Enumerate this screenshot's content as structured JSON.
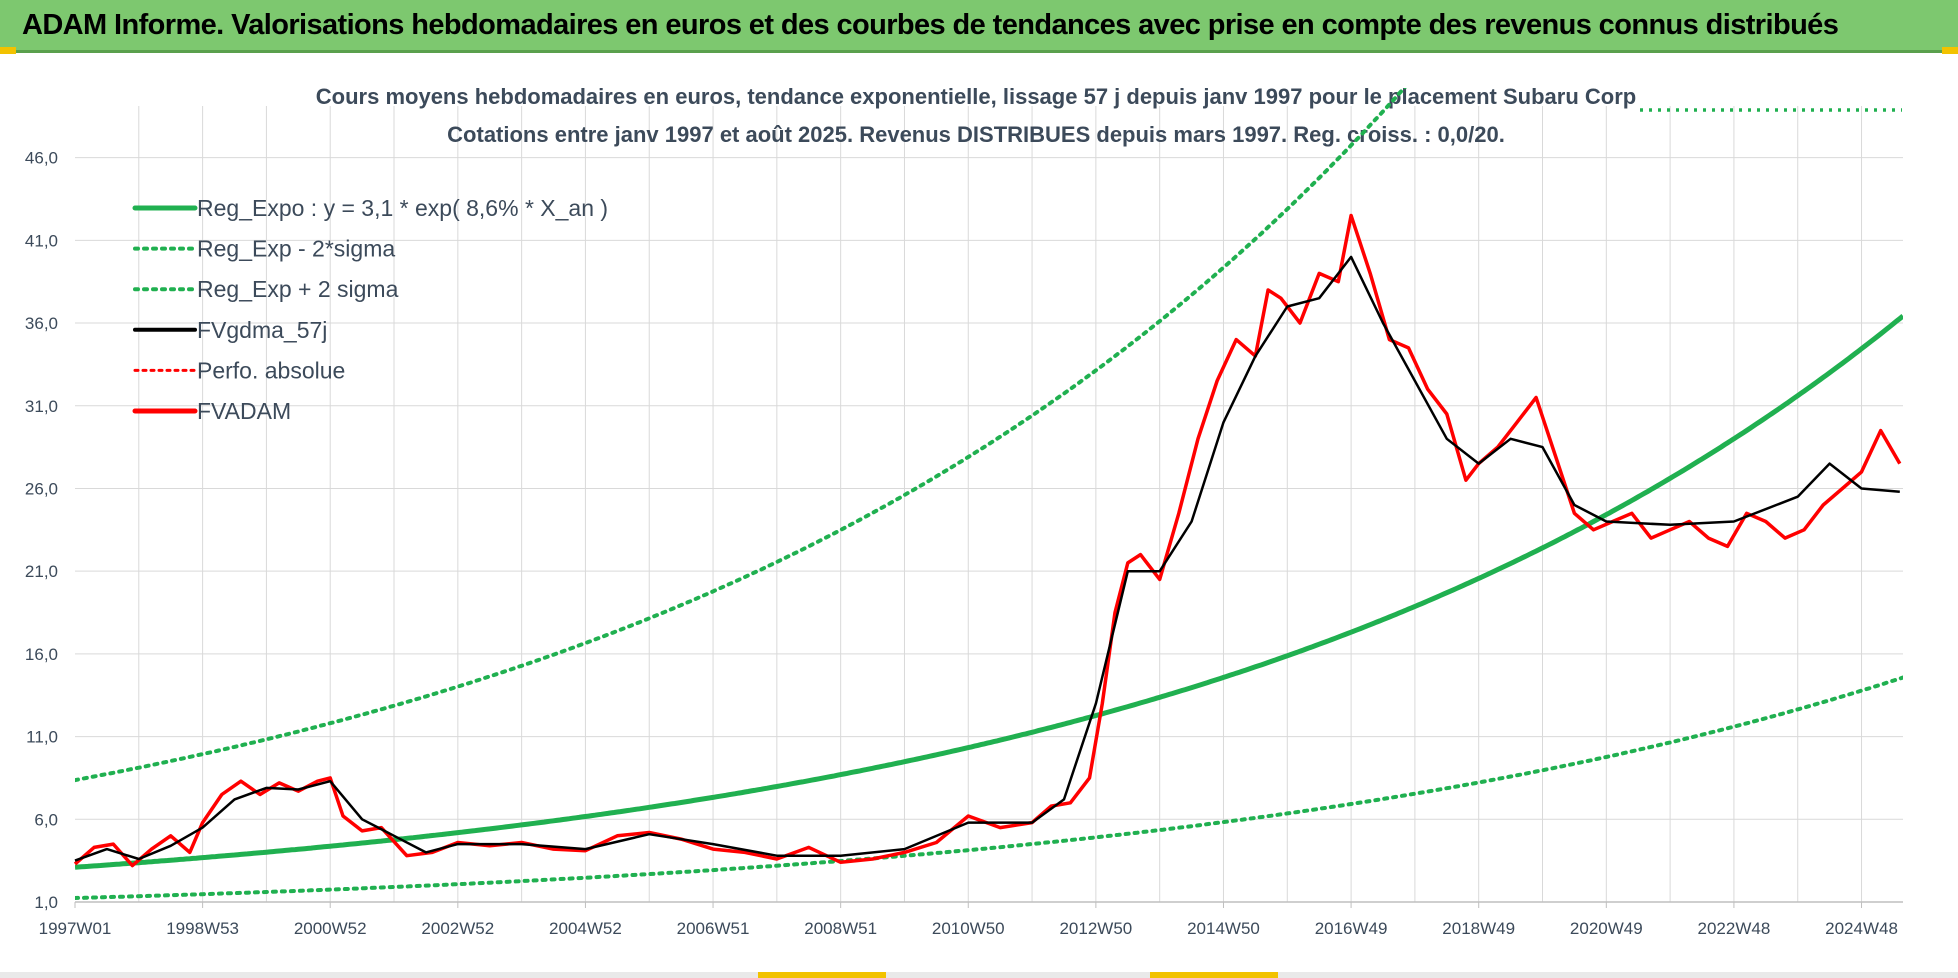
{
  "banner": {
    "title": "ADAM Informe. Valorisations hebdomadaires en euros et des courbes de tendances avec prise en compte des revenus connus distribués"
  },
  "colors": {
    "banner": "#7dc86f",
    "reg_expo": "#20b050",
    "fvgdma": "#000000",
    "fvadam": "#ff0000",
    "grid": "#d9d9d9"
  },
  "chart_data": {
    "type": "line",
    "title": "Cours moyens hebdomadaires en euros, tendance exponentielle, lissage 57 j depuis janv 1997 pour le placement Subaru Corp",
    "subtitle": "Cotations entre janv 1997 et août 2025.  Revenus DISTRIBUES depuis mars 1997. Reg. croiss. : 0,0/20.",
    "xlabel": "",
    "ylabel": "",
    "ylim": [
      1,
      49
    ],
    "xlim": [
      1997.0,
      2025.65
    ],
    "y_ticks": [
      "1,0",
      "6,0",
      "11,0",
      "16,0",
      "21,0",
      "26,0",
      "31,0",
      "36,0",
      "41,0",
      "46,0"
    ],
    "y_tick_values": [
      1,
      6,
      11,
      16,
      21,
      26,
      31,
      36,
      41,
      46
    ],
    "x_ticks": [
      "1997W01",
      "1998W53",
      "2000W52",
      "2002W52",
      "2004W52",
      "2006W51",
      "2008W51",
      "2010W50",
      "2012W50",
      "2014W50",
      "2016W49",
      "2018W49",
      "2020W49",
      "2022W48",
      "2024W48"
    ],
    "x_tick_values": [
      1997.0,
      1999.0,
      2001.0,
      2003.0,
      2005.0,
      2007.0,
      2009.0,
      2011.0,
      2013.0,
      2015.0,
      2017.0,
      2019.0,
      2021.0,
      2023.0,
      2025.0
    ],
    "grid": true,
    "legend_position": "top-left",
    "legend": [
      {
        "label": "Reg_Expo : y = 3,1 * exp( 8,6% *  X_an )",
        "style": "solid-green"
      },
      {
        "label": "Reg_Exp - 2*sigma",
        "style": "dotted-green"
      },
      {
        "label": "Reg_Exp + 2 sigma",
        "style": "dotted-green"
      },
      {
        "label": "FVgdma_57j",
        "style": "solid-black"
      },
      {
        "label": "Perfo. absolue",
        "style": "dotted-red"
      },
      {
        "label": "FVADAM",
        "style": "solid-red"
      }
    ],
    "trend": {
      "a": 3.1,
      "rate": 0.086,
      "lower_factor": 0.4,
      "upper_factor": 2.7
    },
    "series": [
      {
        "name": "FVADAM",
        "x": [
          1997.0,
          1997.3,
          1997.6,
          1997.9,
          1998.2,
          1998.5,
          1998.8,
          1999.0,
          1999.3,
          1999.6,
          1999.9,
          2000.2,
          2000.5,
          2000.8,
          2001.0,
          2001.2,
          2001.5,
          2001.8,
          2002.2,
          2002.6,
          2003.0,
          2003.5,
          2004.0,
          2004.5,
          2005.0,
          2005.5,
          2006.0,
          2006.5,
          2007.0,
          2007.5,
          2008.0,
          2008.5,
          2009.0,
          2009.5,
          2010.0,
          2010.5,
          2011.0,
          2011.5,
          2012.0,
          2012.3,
          2012.6,
          2012.9,
          2013.1,
          2013.3,
          2013.5,
          2013.7,
          2014.0,
          2014.3,
          2014.6,
          2014.9,
          2015.2,
          2015.5,
          2015.7,
          2015.9,
          2016.2,
          2016.5,
          2016.8,
          2017.0,
          2017.3,
          2017.6,
          2017.9,
          2018.2,
          2018.5,
          2018.8,
          2019.0,
          2019.3,
          2019.6,
          2019.9,
          2020.2,
          2020.5,
          2020.8,
          2021.1,
          2021.4,
          2021.7,
          2022.0,
          2022.3,
          2022.6,
          2022.9,
          2023.2,
          2023.5,
          2023.8,
          2024.1,
          2024.4,
          2024.7,
          2025.0,
          2025.3,
          2025.6
        ],
        "y": [
          3.3,
          4.3,
          4.5,
          3.2,
          4.2,
          5.0,
          4.0,
          5.8,
          7.5,
          8.3,
          7.5,
          8.2,
          7.7,
          8.3,
          8.5,
          6.2,
          5.3,
          5.5,
          3.8,
          4.0,
          4.6,
          4.4,
          4.6,
          4.2,
          4.1,
          5.0,
          5.2,
          4.8,
          4.2,
          4.0,
          3.6,
          4.3,
          3.4,
          3.6,
          4.0,
          4.6,
          6.2,
          5.5,
          5.8,
          6.8,
          7.0,
          8.5,
          13.0,
          18.5,
          21.5,
          22.0,
          20.5,
          24.5,
          29.0,
          32.5,
          35.0,
          34.0,
          38.0,
          37.5,
          36.0,
          39.0,
          38.5,
          42.5,
          39.0,
          35.0,
          34.5,
          32.0,
          30.5,
          26.5,
          27.5,
          28.5,
          30.0,
          31.5,
          28.0,
          24.5,
          23.5,
          24.0,
          24.5,
          23.0,
          23.5,
          24.0,
          23.0,
          22.5,
          24.5,
          24.0,
          23.0,
          23.5,
          25.0,
          26.0,
          27.0,
          29.5,
          27.5
        ]
      },
      {
        "name": "FVgdma_57j",
        "x": [
          1997.0,
          1997.5,
          1998.0,
          1998.5,
          1999.0,
          1999.5,
          2000.0,
          2000.5,
          2001.0,
          2001.5,
          2002.0,
          2002.5,
          2003.0,
          2004.0,
          2005.0,
          2006.0,
          2007.0,
          2008.0,
          2009.0,
          2010.0,
          2011.0,
          2012.0,
          2012.5,
          2013.0,
          2013.5,
          2014.0,
          2014.5,
          2015.0,
          2015.5,
          2016.0,
          2016.5,
          2017.0,
          2017.5,
          2018.0,
          2018.5,
          2019.0,
          2019.5,
          2020.0,
          2020.5,
          2021.0,
          2022.0,
          2023.0,
          2024.0,
          2024.5,
          2025.0,
          2025.6
        ],
        "y": [
          3.5,
          4.2,
          3.6,
          4.4,
          5.5,
          7.2,
          7.9,
          7.8,
          8.3,
          6.0,
          5.0,
          4.0,
          4.5,
          4.5,
          4.2,
          5.1,
          4.5,
          3.8,
          3.8,
          4.2,
          5.8,
          5.8,
          7.2,
          13.0,
          21.0,
          21.0,
          24.0,
          30.0,
          34.0,
          37.0,
          37.5,
          40.0,
          36.0,
          32.5,
          29.0,
          27.5,
          29.0,
          28.5,
          25.0,
          24.0,
          23.8,
          24.0,
          25.5,
          27.5,
          26.0,
          25.8
        ]
      }
    ]
  }
}
